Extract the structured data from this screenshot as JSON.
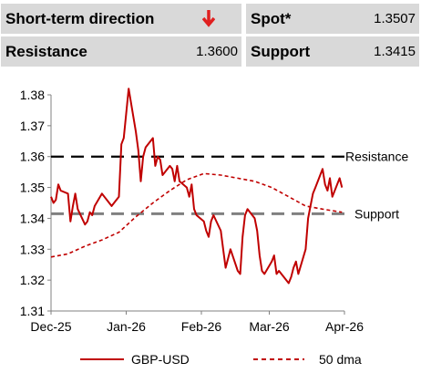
{
  "header": {
    "short_term_label": "Short-term direction",
    "direction_icon": "down-arrow-icon",
    "direction_color": "#e02020",
    "spot_label": "Spot*",
    "spot_value": "1.3507",
    "resistance_label": "Resistance",
    "resistance_value": "1.3600",
    "support_label": "Support",
    "support_value": "1.3415"
  },
  "chart_data": {
    "type": "line",
    "ylim": [
      1.31,
      1.38
    ],
    "yticks": [
      "1.38",
      "1.37",
      "1.36",
      "1.35",
      "1.34",
      "1.33",
      "1.32",
      "1.31"
    ],
    "xticks": [
      "Dec-25",
      "Jan-26",
      "Feb-26",
      "Mar-26",
      "Apr-26"
    ],
    "xrange": [
      "2025-12-01",
      "2026-04-01"
    ],
    "grid": false,
    "legend_position": "bottom",
    "series": [
      {
        "name": "GBP-USD",
        "style": "solid",
        "color": "#c00000",
        "x": [
          "2025-12-01",
          "2025-12-02",
          "2025-12-03",
          "2025-12-04",
          "2025-12-05",
          "2025-12-08",
          "2025-12-09",
          "2025-12-10",
          "2025-12-11",
          "2025-12-12",
          "2025-12-15",
          "2025-12-16",
          "2025-12-17",
          "2025-12-18",
          "2025-12-19",
          "2025-12-22",
          "2025-12-23",
          "2025-12-24",
          "2025-12-26",
          "2025-12-29",
          "2025-12-30",
          "2025-12-31",
          "2026-01-02",
          "2026-01-05",
          "2026-01-06",
          "2026-01-07",
          "2026-01-08",
          "2026-01-09",
          "2026-01-12",
          "2026-01-13",
          "2026-01-14",
          "2026-01-15",
          "2026-01-16",
          "2026-01-19",
          "2026-01-20",
          "2026-01-21",
          "2026-01-22",
          "2026-01-23",
          "2026-01-26",
          "2026-01-27",
          "2026-01-28",
          "2026-01-29",
          "2026-01-30",
          "2026-02-02",
          "2026-02-03",
          "2026-02-04",
          "2026-02-05",
          "2026-02-06",
          "2026-02-09",
          "2026-02-10",
          "2026-02-11",
          "2026-02-12",
          "2026-02-13",
          "2026-02-16",
          "2026-02-17",
          "2026-02-18",
          "2026-02-19",
          "2026-02-20",
          "2026-02-23",
          "2026-02-24",
          "2026-02-25",
          "2026-02-26",
          "2026-02-27",
          "2026-03-02",
          "2026-03-03",
          "2026-03-04",
          "2026-03-05",
          "2026-03-06",
          "2026-03-09",
          "2026-03-10",
          "2026-03-11",
          "2026-03-12",
          "2026-03-13",
          "2026-03-16",
          "2026-03-17",
          "2026-03-18",
          "2026-03-19",
          "2026-03-20",
          "2026-03-23",
          "2026-03-24",
          "2026-03-25",
          "2026-03-26",
          "2026-03-27",
          "2026-03-30",
          "2026-03-31"
        ],
        "values": [
          1.347,
          1.345,
          1.346,
          1.351,
          1.349,
          1.348,
          1.339,
          1.344,
          1.348,
          1.343,
          1.338,
          1.339,
          1.342,
          1.341,
          1.344,
          1.348,
          1.347,
          1.346,
          1.344,
          1.347,
          1.364,
          1.366,
          1.382,
          1.368,
          1.362,
          1.352,
          1.36,
          1.363,
          1.366,
          1.357,
          1.36,
          1.359,
          1.354,
          1.357,
          1.356,
          1.352,
          1.357,
          1.352,
          1.35,
          1.347,
          1.351,
          1.343,
          1.341,
          1.339,
          1.336,
          1.334,
          1.339,
          1.341,
          1.336,
          1.33,
          1.324,
          1.327,
          1.33,
          1.323,
          1.322,
          1.334,
          1.341,
          1.343,
          1.34,
          1.336,
          1.328,
          1.323,
          1.322,
          1.326,
          1.328,
          1.322,
          1.323,
          1.322,
          1.319,
          1.321,
          1.324,
          1.326,
          1.322,
          1.33,
          1.34,
          1.344,
          1.348,
          1.35,
          1.356,
          1.351,
          1.349,
          1.353,
          1.347,
          1.353,
          1.35
        ]
      },
      {
        "name": "50 dma",
        "style": "dashed",
        "color": "#c00000",
        "x": [
          "2025-12-01",
          "2025-12-08",
          "2025-12-15",
          "2025-12-22",
          "2025-12-29",
          "2026-01-05",
          "2026-01-12",
          "2026-01-19",
          "2026-01-26",
          "2026-02-02",
          "2026-02-09",
          "2026-02-16",
          "2026-02-23",
          "2026-03-02",
          "2026-03-09",
          "2026-03-16",
          "2026-03-23",
          "2026-03-31"
        ],
        "values": [
          1.3275,
          1.3285,
          1.331,
          1.333,
          1.3355,
          1.3405,
          1.345,
          1.349,
          1.3525,
          1.3545,
          1.354,
          1.353,
          1.352,
          1.35,
          1.347,
          1.344,
          1.343,
          1.342
        ]
      }
    ],
    "reference_lines": [
      {
        "label": "Resistance",
        "value": 1.36,
        "color": "#000000"
      },
      {
        "label": "Support",
        "value": 1.3415,
        "color": "#808080"
      }
    ]
  }
}
